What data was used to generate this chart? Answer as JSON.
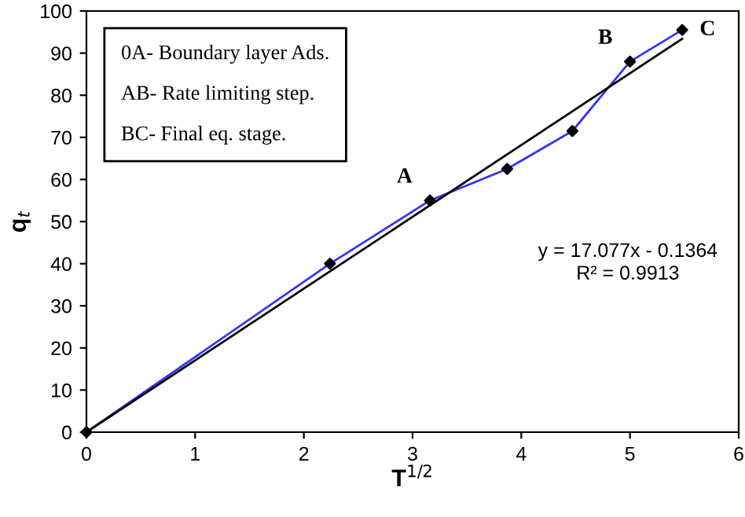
{
  "chart_data": {
    "type": "line",
    "xlabel": "T$^{1/2}$",
    "ylabel": "q$_{t}$",
    "xlim": [
      0,
      6
    ],
    "ylim": [
      0,
      100
    ],
    "xticks": [
      0,
      1,
      2,
      3,
      4,
      5,
      6
    ],
    "yticks": [
      0,
      10,
      20,
      30,
      40,
      50,
      60,
      70,
      80,
      90,
      100
    ],
    "grid": false,
    "legend": false,
    "series": [
      {
        "color": "#3333ff",
        "marker": "none",
        "x": [
          0,
          2.24,
          3.16,
          3.87,
          4.47,
          5.0,
          5.48
        ],
        "values": [
          0,
          40,
          55,
          62.5,
          71.5,
          88,
          95.5
        ]
      },
      {
        "type": "scatter",
        "color": "#000000",
        "marker": "diamond",
        "x": [
          0,
          2.24,
          3.16,
          3.87,
          4.47,
          5.0,
          5.48
        ],
        "values": [
          0,
          40,
          55,
          62.5,
          71.5,
          88,
          95.5
        ]
      },
      {
        "color": "#000000",
        "marker": "none",
        "x": [
          0,
          5.48
        ],
        "values": [
          0,
          93.4
        ]
      }
    ],
    "annotations": [
      {
        "text": "A",
        "x": 3.16,
        "y": 55
      },
      {
        "text": "B",
        "x": 5.0,
        "y": 88
      },
      {
        "text": "C",
        "x": 5.48,
        "y": 95.5
      },
      "0A- Boundary layer Ads.",
      "AB- Rate limiting step.",
      "BC- Final eq. stage.",
      "y = 17.077x - 0.1364\nR² = 0.9913"
    ]
  }
}
